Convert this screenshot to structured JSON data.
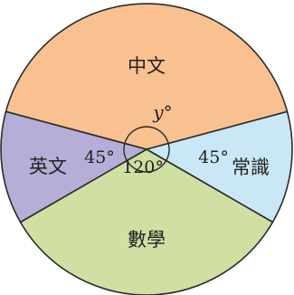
{
  "chart_data": {
    "type": "pie",
    "slices": [
      {
        "label": "中文",
        "angle_label": "y°",
        "color": "#f8c18f"
      },
      {
        "label": "常識",
        "angle_label": "45°",
        "angle_deg": 45,
        "color": "#c9e7f6"
      },
      {
        "label": "數學",
        "angle_label": "120°",
        "angle_deg": 120,
        "color": "#cfe0a2"
      },
      {
        "label": "英文",
        "angle_label": "45°",
        "angle_deg": 45,
        "color": "#b6aed6"
      }
    ]
  }
}
